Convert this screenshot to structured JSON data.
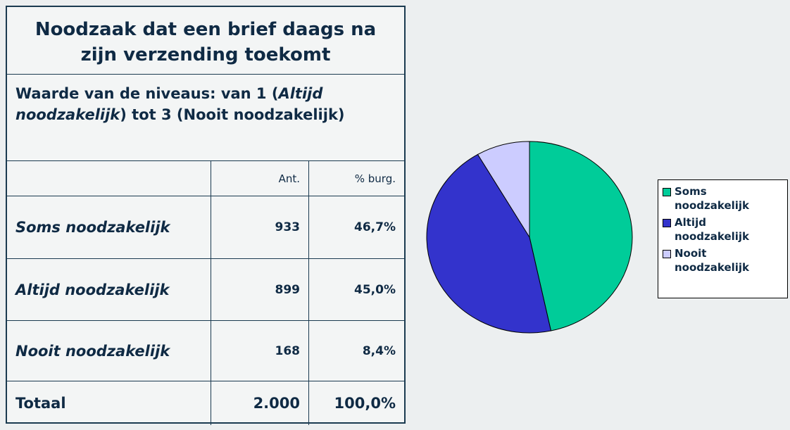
{
  "table": {
    "title": "Noodzaak dat een brief daags na zijn verzending toekomt",
    "subtitle": [
      "Waarde van de niveaus: van 1 (",
      "Altijd noodzakelijk",
      ") tot 3 (Nooit noodzakelijk)"
    ],
    "header": [
      "Ant.",
      "% burg."
    ],
    "rows": [
      [
        "Soms noodzakelijk",
        "933",
        "46,7%"
      ],
      [
        "Altijd noodzakelijk",
        "899",
        "45,0%"
      ],
      [
        "Nooit noodzakelijk",
        "168",
        "8,4%"
      ]
    ],
    "total": [
      "Totaal",
      "2.000",
      "100,0%"
    ]
  },
  "chart_data": {
    "type": "pie",
    "categories": [
      "Soms noodzakelijk",
      "Altijd noodzakelijk",
      "Nooit noodzakelijk"
    ],
    "values": [
      46.7,
      45.0,
      8.4
    ],
    "colors": [
      "#00cc99",
      "#3333cc",
      "#ccccff"
    ]
  }
}
